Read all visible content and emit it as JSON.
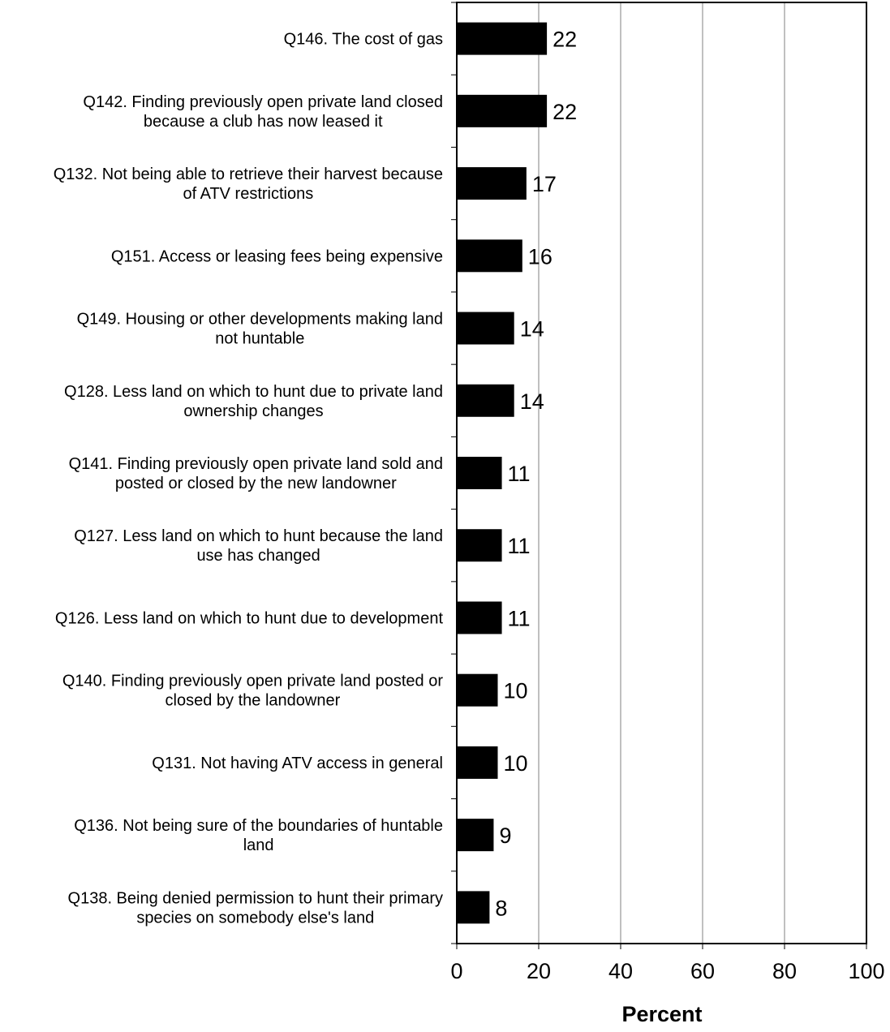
{
  "chart_data": {
    "type": "bar",
    "orientation": "horizontal",
    "categories": [
      "Q146. The cost of gas",
      "Q142. Finding previously open private land closed because a club has now leased it",
      "Q132. Not being able to retrieve their harvest because of ATV restrictions",
      "Q151. Access or leasing fees being expensive",
      "Q149. Housing or other developments making land not huntable",
      "Q128. Less land on which to hunt due to private land ownership changes",
      "Q141. Finding previously open private land sold and posted or closed by the new landowner",
      "Q127. Less land on which to hunt because the land use has changed",
      "Q126. Less land on which to hunt due to development",
      "Q140. Finding previously open private land posted or closed by the landowner",
      "Q131. Not having ATV access in general",
      "Q136. Not being sure of the boundaries of huntable land",
      "Q138. Being denied permission to hunt their primary species on somebody else's land"
    ],
    "category_lines": [
      [
        "Q146. The cost of gas"
      ],
      [
        "Q142. Finding previously open private land closed",
        "because a club has now leased it"
      ],
      [
        "Q132. Not being able to retrieve their harvest because",
        "of ATV restrictions"
      ],
      [
        "Q151. Access or leasing fees being expensive"
      ],
      [
        "Q149. Housing or other developments making land",
        "not huntable"
      ],
      [
        "Q128. Less land on which to hunt due to private land",
        "ownership changes"
      ],
      [
        "Q141. Finding previously open private land sold and",
        "posted or closed by the new landowner"
      ],
      [
        "Q127. Less land on which to hunt because the land",
        "use has changed"
      ],
      [
        "Q126. Less land on which to hunt due to development"
      ],
      [
        "Q140. Finding previously open private land posted or",
        "closed by the landowner"
      ],
      [
        "Q131. Not having ATV access in general"
      ],
      [
        "Q136. Not being sure of the boundaries of huntable",
        "land"
      ],
      [
        "Q138. Being denied permission to hunt their primary",
        "species on somebody else's land"
      ]
    ],
    "values": [
      22,
      22,
      17,
      16,
      14,
      14,
      11,
      11,
      11,
      10,
      10,
      9,
      8
    ],
    "data_labels": [
      "22",
      "22",
      "17",
      "16",
      "14",
      "14",
      "11",
      "11",
      "11",
      "10",
      "10",
      "9",
      "8"
    ],
    "xlabel": "Percent",
    "ylabel": "",
    "xlim": [
      0,
      100
    ],
    "xticks": [
      0,
      20,
      40,
      60,
      80,
      100
    ],
    "xtick_labels": [
      "0",
      "20",
      "40",
      "60",
      "80",
      "100"
    ],
    "grid": true,
    "legend": "none",
    "bar_color": "#000000",
    "grid_color": "#808080"
  }
}
